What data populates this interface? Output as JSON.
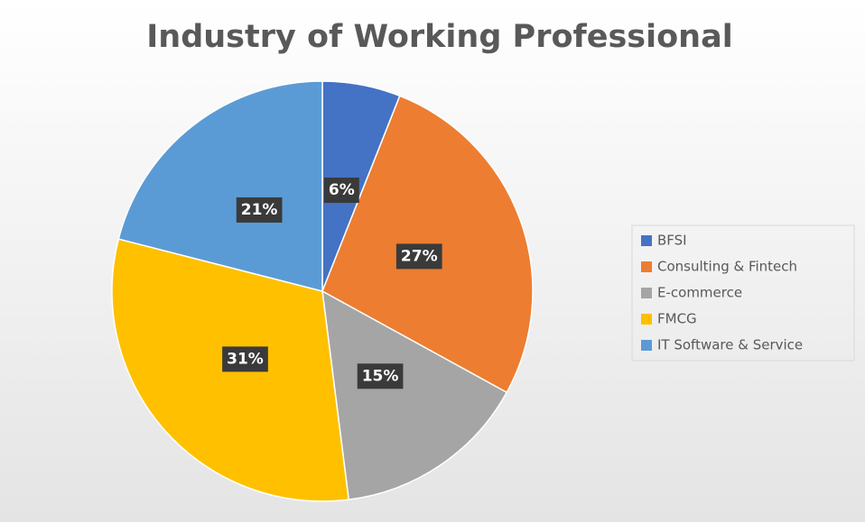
{
  "chart_data": {
    "type": "pie",
    "title": "Industry of Working Professional",
    "categories": [
      "BFSI",
      "Consulting & Fintech",
      "E-commerce",
      "FMCG",
      "IT Software & Service"
    ],
    "values": [
      6,
      27,
      15,
      31,
      21
    ],
    "value_labels": [
      "6%",
      "27%",
      "15%",
      "31%",
      "21%"
    ],
    "colors": [
      "#4472c4",
      "#ed7d31",
      "#a5a5a5",
      "#ffc000",
      "#5b9bd5"
    ],
    "legend": "right"
  }
}
